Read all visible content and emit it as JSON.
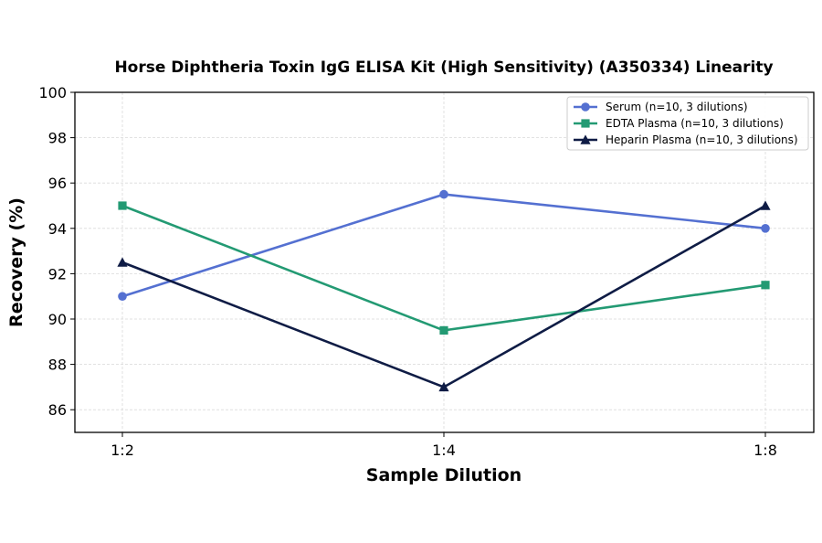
{
  "chart_data": {
    "type": "line",
    "title": "Horse Diphtheria Toxin IgG ELISA Kit (High Sensitivity) (A350334) Linearity",
    "xlabel": "Sample Dilution",
    "ylabel": "Recovery (%)",
    "categories": [
      "1:2",
      "1:4",
      "1:8"
    ],
    "ylim": [
      85,
      100
    ],
    "yticks": [
      86,
      88,
      90,
      92,
      94,
      96,
      98,
      100
    ],
    "grid": true,
    "legend_position": "top-right",
    "series": [
      {
        "name": "Serum (n=10, 3 dilutions)",
        "values": [
          91,
          95.5,
          94
        ],
        "color": "#5470d1",
        "marker": "circle"
      },
      {
        "name": "EDTA Plasma (n=10, 3 dilutions)",
        "values": [
          95,
          89.5,
          91.5
        ],
        "color": "#239a73",
        "marker": "square"
      },
      {
        "name": "Heparin Plasma (n=10, 3 dilutions)",
        "values": [
          92.5,
          87,
          95
        ],
        "color": "#0f1c45",
        "marker": "triangle"
      }
    ]
  }
}
